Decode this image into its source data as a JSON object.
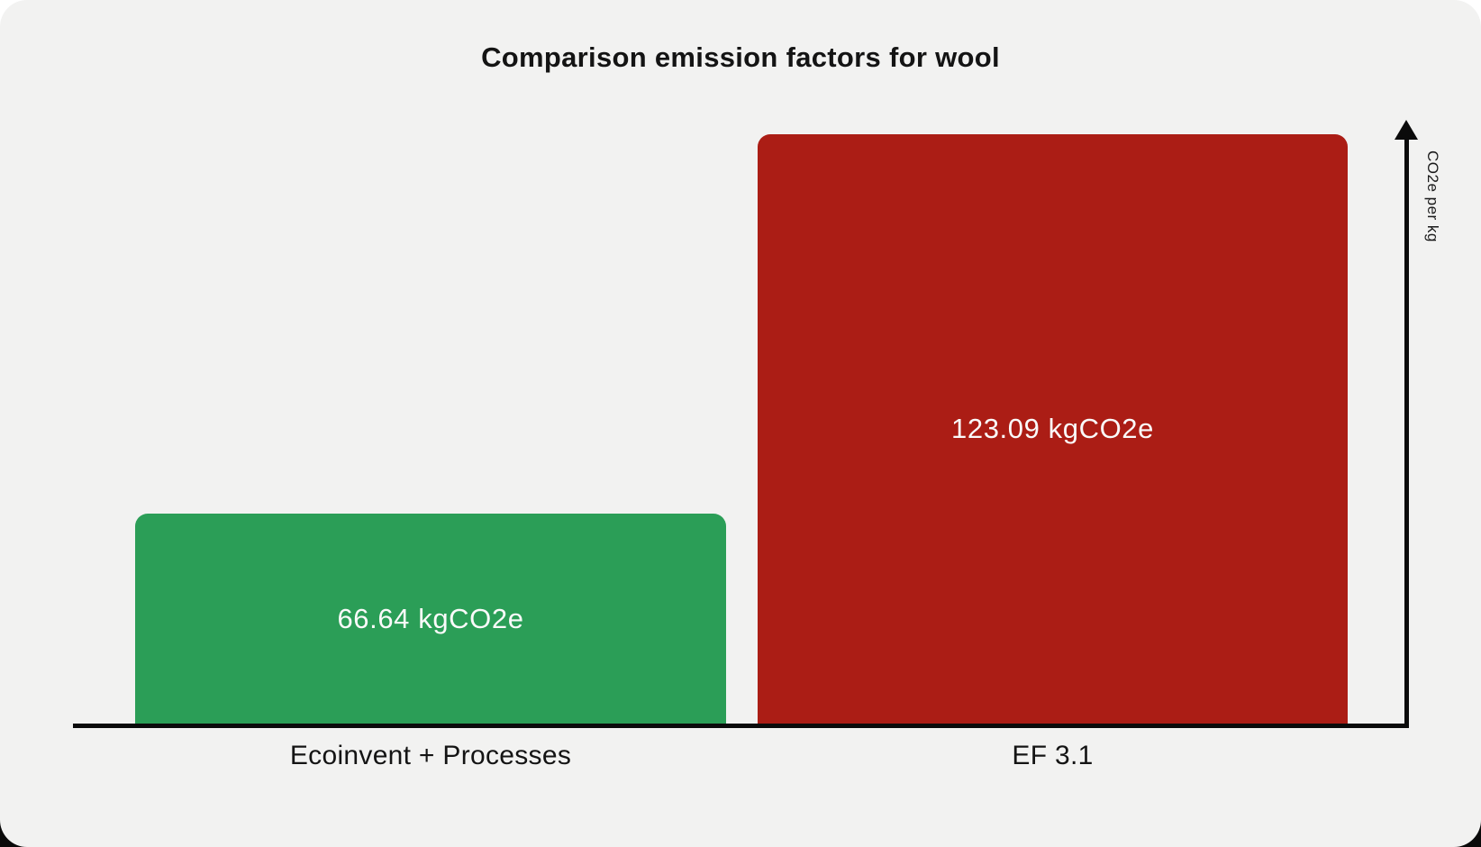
{
  "chart_data": {
    "type": "bar",
    "title": "Comparison emission factors for wool",
    "xlabel": "",
    "ylabel": "CO2e per kg",
    "unit": "kgCO2e",
    "categories": [
      "Ecoinvent + Processes",
      "EF 3.1"
    ],
    "values": [
      66.64,
      123.09
    ],
    "value_labels": [
      "66.64 kgCO2e",
      "123.09 kgCO2e"
    ],
    "bar_colors": [
      "#2b9e57",
      "#ab1d15"
    ],
    "value_label_color": "#fafafa",
    "axis_color": "#0b0b0b",
    "background_color": "#f2f2f1",
    "grid": false,
    "legend_position": "none",
    "y_axis_side": "right",
    "y_axis_arrow": true
  }
}
